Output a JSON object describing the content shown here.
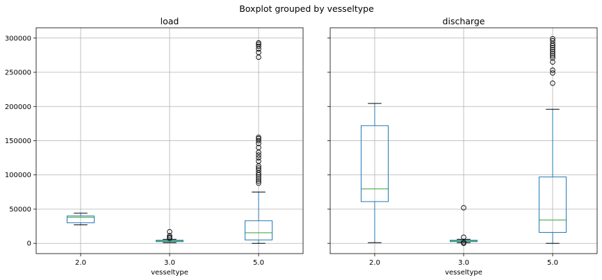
{
  "figure": {
    "suptitle": "Boxplot grouped by vesseltype"
  },
  "chart_data": [
    {
      "type": "box",
      "title": "load",
      "xlabel": "vesseltype",
      "ylabel": "",
      "categories": [
        "2.0",
        "3.0",
        "5.0"
      ],
      "ylim": [
        -15000,
        315000
      ],
      "yticks": [
        0,
        50000,
        100000,
        150000,
        200000,
        250000,
        300000
      ],
      "ytick_labels": [
        "0",
        "50000",
        "100000",
        "150000",
        "200000",
        "250000",
        "300000"
      ],
      "grid": true,
      "boxes": [
        {
          "category": "2.0",
          "whislo": 27000,
          "q1": 30000,
          "med": 38000,
          "q3": 40000,
          "whishi": 44000,
          "fliers": []
        },
        {
          "category": "3.0",
          "whislo": 1000,
          "q1": 2500,
          "med": 3500,
          "q3": 4500,
          "whishi": 6000,
          "fliers": [
            7500,
            9000,
            11000,
            17000
          ]
        },
        {
          "category": "5.0",
          "whislo": 0,
          "q1": 5000,
          "med": 15500,
          "q3": 33000,
          "whishi": 75000,
          "fliers": [
            88000,
            91000,
            94000,
            97000,
            100000,
            103000,
            107000,
            110000,
            113000,
            120000,
            125000,
            129000,
            133000,
            140000,
            146000,
            150000,
            153000,
            155000,
            272000,
            279000,
            284000,
            288000,
            291000,
            293000
          ]
        }
      ]
    },
    {
      "type": "box",
      "title": "discharge",
      "xlabel": "vesseltype",
      "ylabel": "",
      "categories": [
        "2.0",
        "3.0",
        "5.0"
      ],
      "ylim": [
        -15000,
        315000
      ],
      "grid": true,
      "boxes": [
        {
          "category": "2.0",
          "whislo": 1000,
          "q1": 61000,
          "med": 79500,
          "q3": 172000,
          "whishi": 204500,
          "fliers": []
        },
        {
          "category": "3.0",
          "whislo": 1000,
          "q1": 2500,
          "med": 3500,
          "q3": 4500,
          "whishi": 6000,
          "fliers": [
            0,
            1500,
            9000,
            52000
          ]
        },
        {
          "category": "5.0",
          "whislo": 0,
          "q1": 16000,
          "med": 34000,
          "q3": 97000,
          "whishi": 196000,
          "fliers": [
            234000,
            249000,
            253000,
            265000,
            271000,
            274000,
            277000,
            280000,
            283000,
            286000,
            289000,
            292000,
            296000,
            299000
          ]
        }
      ]
    }
  ],
  "colors": {
    "box": "#1f77b4",
    "median": "#2ca02c",
    "flier": "#000000",
    "whisker": "#1f77b4",
    "cap": "#000000",
    "grid": "#b0b0b0"
  }
}
